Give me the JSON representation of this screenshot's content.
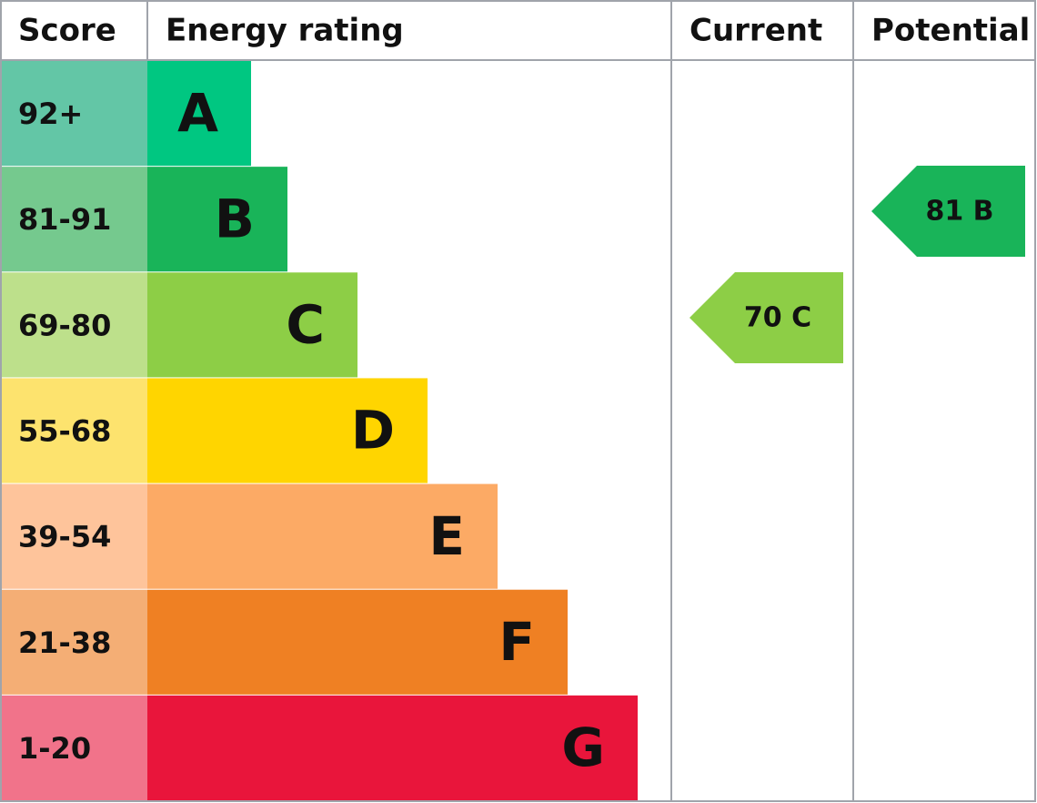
{
  "header": {
    "score": "Score",
    "rating": "Energy rating",
    "current": "Current",
    "potential": "Potential"
  },
  "bands": [
    {
      "score": "92+",
      "rating": "A",
      "score_color": "#63c6a6",
      "color": "#00c781"
    },
    {
      "score": "81-91",
      "rating": "B",
      "score_color": "#75c98e",
      "color": "#19b459"
    },
    {
      "score": "69-80",
      "rating": "C",
      "score_color": "#bde08b",
      "color": "#8dce46"
    },
    {
      "score": "55-68",
      "rating": "D",
      "score_color": "#fde36e",
      "color": "#ffd500"
    },
    {
      "score": "39-54",
      "rating": "E",
      "score_color": "#fec49b",
      "color": "#fcaa65"
    },
    {
      "score": "21-38",
      "rating": "F",
      "score_color": "#f4ae75",
      "color": "#ef8023"
    },
    {
      "score": "1-20",
      "rating": "G",
      "score_color": "#f1738a",
      "color": "#e9153b"
    }
  ],
  "current": {
    "label": "70 C",
    "color": "#8dce46"
  },
  "potential": {
    "label": "81 B",
    "color": "#19b459"
  }
}
